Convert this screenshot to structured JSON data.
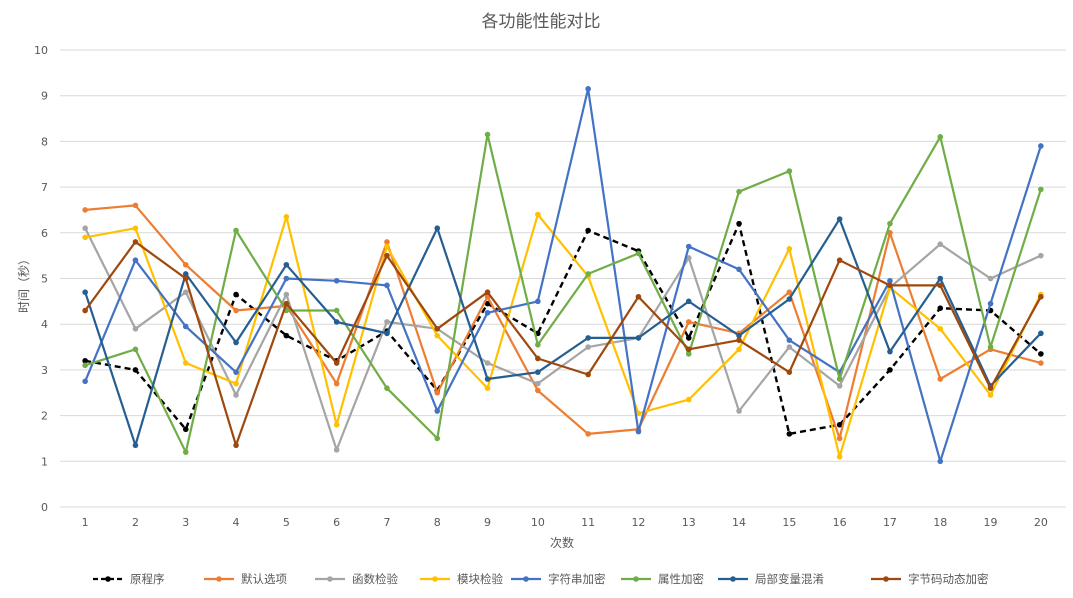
{
  "chart_data": {
    "type": "line",
    "title": "各功能性能对比",
    "xlabel": "次数",
    "ylabel": "时间（秒）",
    "ylim": [
      0,
      10
    ],
    "yticks": [
      0,
      1,
      2,
      3,
      4,
      5,
      6,
      7,
      8,
      9,
      10
    ],
    "grid": "horizontal",
    "legend_position": "bottom",
    "categories": [
      "1",
      "2",
      "3",
      "4",
      "5",
      "6",
      "7",
      "8",
      "9",
      "10",
      "11",
      "12",
      "13",
      "14",
      "15",
      "16",
      "17",
      "18",
      "19",
      "20"
    ],
    "series": [
      {
        "name": "原程序",
        "color": "#000000",
        "dashed": true,
        "values": [
          3.2,
          3.0,
          1.7,
          4.65,
          3.75,
          3.2,
          3.85,
          2.55,
          4.45,
          3.8,
          6.05,
          5.6,
          3.7,
          6.2,
          1.6,
          1.8,
          3.0,
          4.35,
          4.3,
          3.35
        ]
      },
      {
        "name": "默认选项",
        "color": "#ED7D31",
        "dashed": false,
        "values": [
          6.5,
          6.6,
          5.3,
          4.3,
          4.4,
          2.7,
          5.8,
          2.5,
          4.6,
          2.55,
          1.6,
          1.7,
          4.05,
          3.8,
          4.7,
          1.5,
          6.0,
          2.8,
          3.45,
          3.15
        ]
      },
      {
        "name": "函数检验",
        "color": "#A5A5A5",
        "dashed": false,
        "values": [
          6.1,
          3.9,
          4.7,
          2.45,
          4.65,
          1.25,
          4.05,
          3.9,
          3.15,
          2.7,
          3.5,
          3.7,
          5.45,
          2.1,
          3.5,
          2.65,
          4.8,
          5.75,
          5.0,
          5.5
        ]
      },
      {
        "name": "模块检验",
        "color": "#FFC000",
        "dashed": false,
        "values": [
          5.9,
          6.1,
          3.15,
          2.7,
          6.35,
          1.8,
          5.7,
          3.75,
          2.6,
          6.4,
          5.05,
          2.05,
          2.35,
          3.45,
          5.65,
          1.1,
          4.8,
          3.9,
          2.45,
          4.65
        ]
      },
      {
        "name": "字符串加密",
        "color": "#4472C4",
        "dashed": false,
        "values": [
          2.75,
          5.4,
          3.95,
          2.95,
          5.0,
          4.95,
          4.85,
          2.1,
          4.25,
          4.5,
          9.15,
          1.65,
          5.7,
          5.2,
          3.65,
          2.95,
          4.95,
          1.0,
          4.45,
          7.9
        ]
      },
      {
        "name": "属性加密",
        "color": "#70AD47",
        "dashed": false,
        "values": [
          3.1,
          3.45,
          1.2,
          6.05,
          4.3,
          4.3,
          2.6,
          1.5,
          8.15,
          3.55,
          5.1,
          5.55,
          3.35,
          6.9,
          7.35,
          2.8,
          6.2,
          8.1,
          3.5,
          6.95
        ]
      },
      {
        "name": "局部变量混淆",
        "color": "#255E91",
        "dashed": false,
        "values": [
          4.7,
          1.35,
          5.1,
          3.6,
          5.3,
          4.05,
          3.8,
          6.1,
          2.8,
          2.95,
          3.7,
          3.7,
          4.5,
          3.75,
          4.55,
          6.3,
          3.4,
          5.0,
          2.65,
          3.8
        ]
      },
      {
        "name": "字节码动态加密",
        "color": "#9E480E",
        "dashed": false,
        "values": [
          4.3,
          5.8,
          5.0,
          1.35,
          4.45,
          3.15,
          5.5,
          3.9,
          4.7,
          3.25,
          2.9,
          4.6,
          3.45,
          3.65,
          2.95,
          5.4,
          4.85,
          4.85,
          2.6,
          4.6
        ]
      }
    ]
  }
}
